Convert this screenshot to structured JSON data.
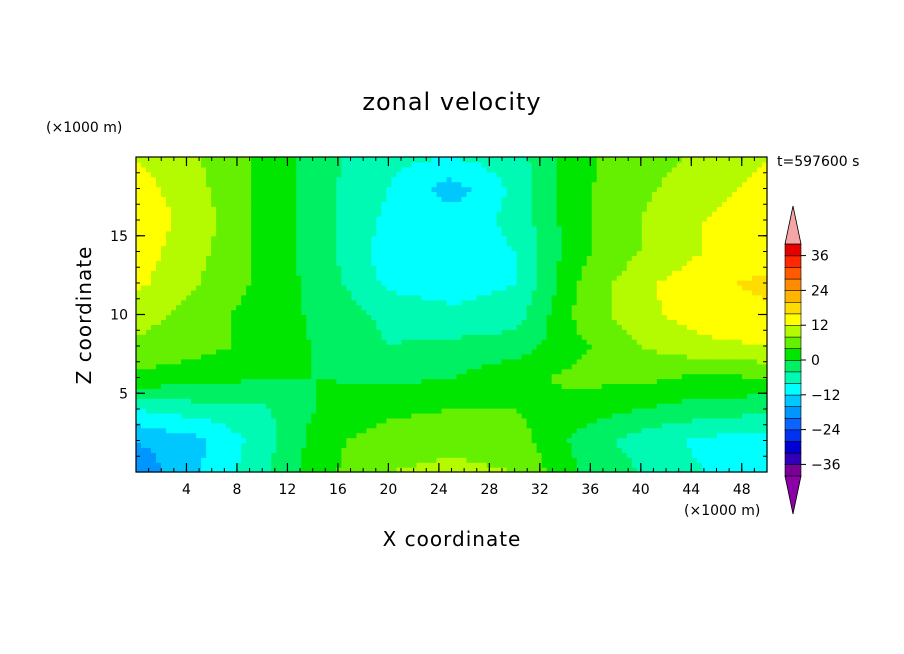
{
  "chart_data": {
    "type": "heatmap",
    "title": "zonal velocity",
    "xlabel": "X coordinate",
    "ylabel": "Z coordinate",
    "x_unit": "(×1000 m)",
    "y_unit": "(×1000 m)",
    "time_label": "t=597600 s",
    "xlim": [
      0,
      50
    ],
    "ylim": [
      0,
      20
    ],
    "x_ticks": [
      4,
      8,
      12,
      16,
      20,
      24,
      28,
      32,
      36,
      40,
      44,
      48
    ],
    "y_ticks": [
      5,
      10,
      15
    ],
    "colorbar": {
      "levels": [
        -40,
        -36,
        -32,
        -28,
        -24,
        -20,
        -16,
        -12,
        -8,
        -4,
        0,
        4,
        8,
        12,
        16,
        20,
        24,
        28,
        32,
        36,
        40
      ],
      "tick_labels": [
        "36",
        "24",
        "12",
        "0",
        "−12",
        "−24",
        "−36"
      ],
      "tick_values": [
        36,
        24,
        12,
        0,
        -12,
        -24,
        -36
      ],
      "colors": [
        "#780094",
        "#3200b4",
        "#0000d2",
        "#0032f0",
        "#0a64ff",
        "#0096ff",
        "#00c8ff",
        "#00ffff",
        "#00fab4",
        "#00f064",
        "#00e600",
        "#64f000",
        "#b4fa00",
        "#ffff00",
        "#ffdc00",
        "#ffb400",
        "#ff8c00",
        "#ff5a00",
        "#ff2800",
        "#e60000"
      ],
      "under_color": "#8c00a8",
      "over_color": "#f5a5a5"
    },
    "grid_x": [
      0,
      5,
      10,
      15,
      20,
      25,
      30,
      35,
      40,
      45,
      50
    ],
    "grid_z": [
      0,
      2,
      4,
      6,
      8,
      10,
      12,
      14,
      16,
      18,
      20
    ],
    "values": [
      [
        -19,
        -12,
        -5,
        3,
        8,
        9,
        8,
        0,
        -4,
        -8,
        -12
      ],
      [
        -16,
        -13,
        -6,
        3,
        6,
        7,
        6,
        -1,
        -6,
        -9,
        -10
      ],
      [
        -8,
        -6,
        -5,
        1,
        3,
        4,
        4,
        2,
        0,
        -2,
        -3
      ],
      [
        3,
        2,
        0,
        0,
        -1,
        0,
        3,
        5,
        5,
        3,
        4
      ],
      [
        7,
        5,
        3,
        -1,
        -4,
        -3,
        -2,
        3,
        8,
        11,
        12
      ],
      [
        10,
        6,
        2,
        -1,
        -5,
        -7,
        -6,
        5,
        11,
        14,
        15
      ],
      [
        13,
        8,
        3,
        -2,
        -9,
        -10,
        -8,
        4,
        11,
        15,
        17
      ],
      [
        14,
        9,
        3,
        -3,
        -10,
        -11,
        -8,
        3,
        8,
        12,
        14
      ],
      [
        15,
        10,
        3,
        -3,
        -9,
        -10,
        -7,
        3,
        8,
        12,
        14
      ],
      [
        14,
        9,
        3,
        -3,
        -8,
        -14,
        -7,
        3,
        7,
        11,
        13
      ],
      [
        12,
        8,
        3,
        -3,
        -7,
        -8,
        -6,
        3,
        6,
        9,
        12
      ]
    ]
  }
}
